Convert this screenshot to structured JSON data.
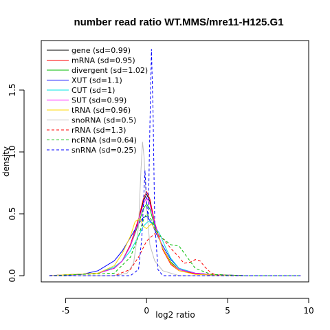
{
  "chart_data": {
    "type": "line",
    "title": "number read ratio WT.MMS/mre11-H125.G1",
    "xlabel": "log2 ratio",
    "ylabel": "density",
    "xlim": [
      -6.5,
      10
    ],
    "ylim": [
      -0.05,
      1.9
    ],
    "xticks": [
      -5,
      0,
      5,
      10
    ],
    "yticks": [
      0.0,
      0.5,
      1.0,
      1.5
    ],
    "xtick_labels": [
      "-5",
      "0",
      "5",
      "10"
    ],
    "ytick_labels": [
      "0.0",
      "0.5",
      "1.0",
      "1.5"
    ],
    "grid": false,
    "legend_position": "top-left",
    "series": [
      {
        "name": "gene (sd=0.99)",
        "color": "#000000",
        "dash": "solid",
        "x": [
          -6,
          -3,
          -2,
          -1.5,
          -1,
          -0.5,
          -0.2,
          0,
          0.2,
          0.5,
          1,
          1.5,
          2,
          3,
          4,
          6,
          9.5
        ],
        "y": [
          0,
          0.02,
          0.06,
          0.12,
          0.25,
          0.45,
          0.6,
          0.66,
          0.6,
          0.42,
          0.22,
          0.1,
          0.05,
          0.02,
          0.01,
          0,
          0
        ]
      },
      {
        "name": "mRNA (sd=0.95)",
        "color": "#ff0000",
        "dash": "solid",
        "x": [
          -6,
          -3,
          -2,
          -1.5,
          -1,
          -0.5,
          -0.2,
          0,
          0.2,
          0.5,
          1,
          1.5,
          2,
          3,
          4,
          6,
          9.5
        ],
        "y": [
          0,
          0.02,
          0.06,
          0.12,
          0.25,
          0.46,
          0.62,
          0.68,
          0.62,
          0.43,
          0.21,
          0.09,
          0.04,
          0.015,
          0.005,
          0,
          0
        ]
      },
      {
        "name": "divergent (sd=1.02)",
        "color": "#00bb00",
        "dash": "solid",
        "x": [
          -6,
          -3,
          -2,
          -1.5,
          -1,
          -0.5,
          -0.2,
          0,
          0.2,
          0.5,
          1,
          1.5,
          2,
          3,
          4,
          6,
          9.5
        ],
        "y": [
          0,
          0.02,
          0.06,
          0.12,
          0.24,
          0.42,
          0.54,
          0.58,
          0.54,
          0.4,
          0.22,
          0.11,
          0.05,
          0.02,
          0.01,
          0,
          0
        ]
      },
      {
        "name": "XUT (sd=1.1)",
        "color": "#0000ff",
        "dash": "solid",
        "x": [
          -6,
          -4,
          -3,
          -2,
          -1.5,
          -1,
          -0.5,
          -0.2,
          0,
          0.3,
          0.6,
          1,
          1.5,
          2,
          3,
          4,
          6,
          9.5
        ],
        "y": [
          0,
          0.01,
          0.04,
          0.12,
          0.2,
          0.31,
          0.42,
          0.47,
          0.48,
          0.43,
          0.34,
          0.24,
          0.13,
          0.06,
          0.02,
          0.005,
          0,
          0
        ]
      },
      {
        "name": "CUT (sd=1)",
        "color": "#00e5e5",
        "dash": "solid",
        "x": [
          -6,
          -3,
          -2,
          -1.5,
          -1,
          -0.5,
          -0.2,
          0.1,
          0.4,
          0.8,
          1.2,
          1.5,
          2,
          3,
          4,
          6,
          9.5
        ],
        "y": [
          0,
          0.02,
          0.07,
          0.12,
          0.2,
          0.32,
          0.4,
          0.44,
          0.42,
          0.34,
          0.22,
          0.14,
          0.06,
          0.02,
          0.01,
          0,
          0
        ]
      },
      {
        "name": "SUT (sd=0.99)",
        "color": "#ff00ff",
        "dash": "solid",
        "x": [
          -6,
          -3,
          -2,
          -1.5,
          -1,
          -0.5,
          -0.2,
          0,
          0.2,
          0.5,
          1,
          1.5,
          2,
          3,
          4,
          6,
          9.5
        ],
        "y": [
          0,
          0.02,
          0.06,
          0.12,
          0.24,
          0.44,
          0.58,
          0.63,
          0.58,
          0.42,
          0.22,
          0.1,
          0.05,
          0.02,
          0.01,
          0,
          0
        ]
      },
      {
        "name": "tRNA (sd=0.96)",
        "color": "#ffd700",
        "dash": "solid",
        "x": [
          -6,
          -3,
          -2,
          -1.5,
          -1,
          -0.7,
          -0.4,
          -0.2,
          0,
          0.3,
          0.6,
          1,
          1.5,
          2,
          3,
          6,
          9.5
        ],
        "y": [
          0,
          0.02,
          0.08,
          0.18,
          0.32,
          0.44,
          0.46,
          0.4,
          0.38,
          0.42,
          0.36,
          0.22,
          0.1,
          0.04,
          0.01,
          0,
          0
        ]
      },
      {
        "name": "snoRNA (sd=0.5)",
        "color": "#bebebe",
        "dash": "solid",
        "x": [
          -6,
          -2,
          -1.2,
          -0.8,
          -0.5,
          -0.35,
          -0.25,
          -0.15,
          0,
          0.2,
          0.5,
          1,
          2,
          6,
          9.5
        ],
        "y": [
          0,
          0,
          0.02,
          0.1,
          0.4,
          0.85,
          1.08,
          0.95,
          0.55,
          0.25,
          0.12,
          0.04,
          0,
          0,
          0
        ]
      },
      {
        "name": "rRNA (sd=1.3)",
        "color": "#ff0000",
        "dash": "dashed",
        "x": [
          -6,
          -2,
          -1,
          -0.5,
          0,
          0.5,
          1,
          1.5,
          2,
          2.3,
          2.7,
          3,
          3.3,
          3.6,
          4,
          4.5,
          6,
          9.5
        ],
        "y": [
          0,
          0,
          0.05,
          0.15,
          0.28,
          0.34,
          0.3,
          0.22,
          0.15,
          0.1,
          0.11,
          0.13,
          0.12,
          0.07,
          0.02,
          0,
          0,
          0
        ]
      },
      {
        "name": "ncRNA (sd=0.64)",
        "color": "#00bb00",
        "dash": "dashed",
        "x": [
          -6,
          -2,
          -1,
          -0.5,
          -0.2,
          0,
          0.3,
          0.6,
          1,
          1.5,
          2,
          2.5,
          3,
          4,
          6,
          9.5
        ],
        "y": [
          0,
          0.02,
          0.15,
          0.32,
          0.45,
          0.5,
          0.45,
          0.36,
          0.3,
          0.25,
          0.24,
          0.15,
          0.06,
          0.01,
          0,
          0
        ]
      },
      {
        "name": "snRNA (sd=0.25)",
        "color": "#0000ff",
        "dash": "dashed",
        "x": [
          -6,
          -1,
          -0.5,
          -0.3,
          -0.1,
          0,
          0.1,
          0.2,
          0.3,
          0.4,
          0.5,
          0.7,
          1,
          6,
          9.5
        ],
        "y": [
          0,
          0,
          0.05,
          0.3,
          0.85,
          0.6,
          0.45,
          1.2,
          1.83,
          1.3,
          0.45,
          0.05,
          0,
          0,
          0
        ]
      }
    ]
  }
}
